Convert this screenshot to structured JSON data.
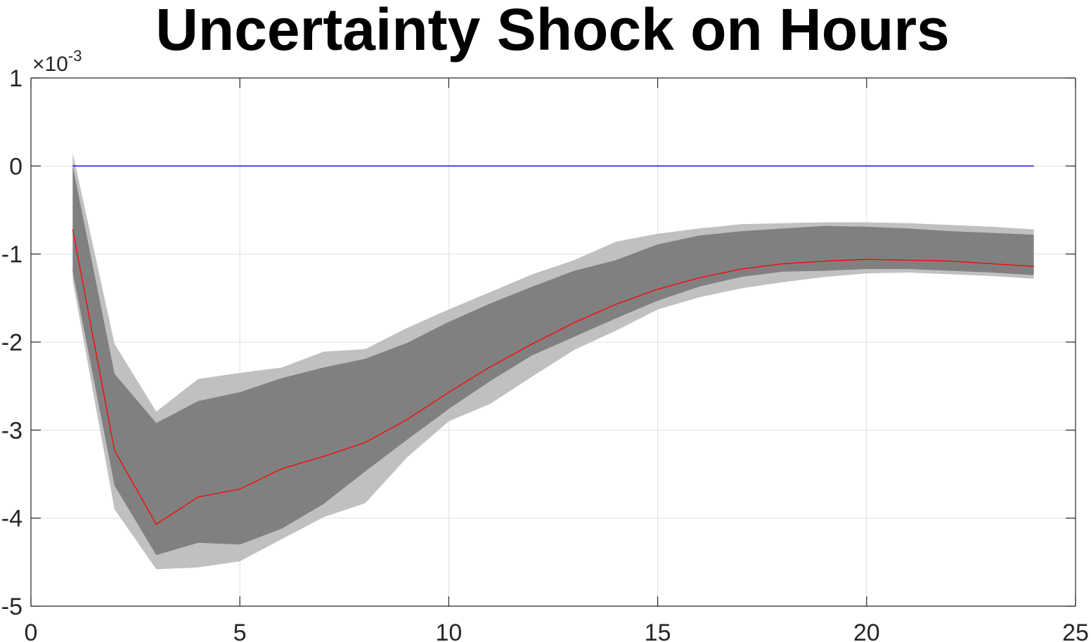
{
  "chart_data": {
    "type": "line",
    "title": "Uncertainty Shock on Hours",
    "xlabel": "",
    "ylabel": "",
    "xlim": [
      0,
      25
    ],
    "ylim": [
      -5,
      1
    ],
    "y_exponent_label": {
      "base": "×10",
      "exponent": "-3"
    },
    "xticks": [
      0,
      5,
      10,
      15,
      20,
      25
    ],
    "yticks": [
      -5,
      -4,
      -3,
      -2,
      -1,
      0,
      1
    ],
    "grid": true,
    "x": [
      1,
      2,
      3,
      4,
      5,
      6,
      7,
      8,
      9,
      10,
      11,
      12,
      13,
      14,
      15,
      16,
      17,
      18,
      19,
      20,
      21,
      22,
      23,
      24
    ],
    "series": [
      {
        "role": "zero-line",
        "color": "#0000cc",
        "values": [
          0,
          0,
          0,
          0,
          0,
          0,
          0,
          0,
          0,
          0,
          0,
          0,
          0,
          0,
          0,
          0,
          0,
          0,
          0,
          0,
          0,
          0,
          0,
          0
        ]
      },
      {
        "role": "median",
        "color": "#ff0000",
        "values": [
          -0.72,
          -3.23,
          -4.07,
          -3.76,
          -3.67,
          -3.44,
          -3.3,
          -3.14,
          -2.88,
          -2.57,
          -2.28,
          -2.02,
          -1.78,
          -1.57,
          -1.4,
          -1.27,
          -1.17,
          -1.11,
          -1.08,
          -1.06,
          -1.07,
          -1.08,
          -1.11,
          -1.14
        ]
      }
    ],
    "bands": [
      {
        "role": "outer",
        "color": "#c0c0c0",
        "upper": [
          0.15,
          -2.02,
          -2.79,
          -2.42,
          -2.35,
          -2.29,
          -2.11,
          -2.08,
          -1.84,
          -1.63,
          -1.43,
          -1.23,
          -1.07,
          -0.86,
          -0.77,
          -0.71,
          -0.66,
          -0.65,
          -0.64,
          -0.64,
          -0.65,
          -0.67,
          -0.69,
          -0.72
        ],
        "lower": [
          -1.3,
          -3.9,
          -4.58,
          -4.56,
          -4.49,
          -4.24,
          -3.99,
          -3.83,
          -3.31,
          -2.9,
          -2.7,
          -2.39,
          -2.09,
          -1.87,
          -1.63,
          -1.49,
          -1.39,
          -1.32,
          -1.26,
          -1.22,
          -1.21,
          -1.23,
          -1.25,
          -1.28
        ]
      },
      {
        "role": "inner",
        "color": "#808080",
        "upper": [
          0.0,
          -2.36,
          -2.92,
          -2.67,
          -2.57,
          -2.41,
          -2.29,
          -2.19,
          -2.01,
          -1.77,
          -1.56,
          -1.37,
          -1.19,
          -1.07,
          -0.89,
          -0.79,
          -0.74,
          -0.71,
          -0.68,
          -0.69,
          -0.71,
          -0.74,
          -0.76,
          -0.78
        ],
        "lower": [
          -1.2,
          -3.63,
          -4.42,
          -4.28,
          -4.3,
          -4.12,
          -3.84,
          -3.47,
          -3.11,
          -2.76,
          -2.44,
          -2.15,
          -1.94,
          -1.73,
          -1.53,
          -1.37,
          -1.26,
          -1.2,
          -1.19,
          -1.17,
          -1.17,
          -1.19,
          -1.21,
          -1.24
        ]
      }
    ]
  }
}
